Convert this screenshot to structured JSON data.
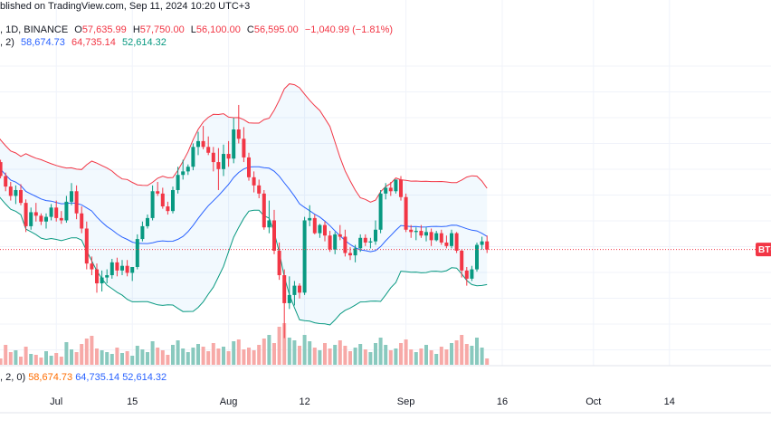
{
  "header": {
    "published": "blished on TradingView.com, Sep 11, 2024 10:20 UTC+3",
    "symbol_line": ", 1D, BINANCE",
    "o_label": "O",
    "o_value": "57,635.99",
    "h_label": "H",
    "h_value": "57,750.00",
    "l_label": "L",
    "l_value": "56,100.00",
    "c_label": "C",
    "c_value": "56,595.00",
    "change": "−1,040.99 (−1.81%)",
    "bb_prefix": ", 2)",
    "bb_basis": "58,674.73",
    "bb_upper": "64,735.14",
    "bb_lower": "52,614.32"
  },
  "volume_header": {
    "prefix": ", 2, 0)",
    "v1": "58,674.73",
    "v2": "64,735.14",
    "v3": "52,614.32"
  },
  "price_label": "BTC",
  "colors": {
    "up": "#089981",
    "down": "#f23645",
    "basis": "#2962ff",
    "upper": "#f23645",
    "lower": "#089981",
    "fill": "#2196f3",
    "vol_up": "#89c9be",
    "vol_down": "#f7a9a7",
    "grid": "#f0f3fa"
  },
  "chart_data": {
    "type": "candlestick",
    "x_tick_labels": [
      "Jul",
      "15",
      "Aug",
      "12",
      "Sep",
      "16",
      "Oct",
      "14"
    ],
    "candles": [
      [
        59900,
        60500,
        59300,
        59600
      ],
      [
        59600,
        59800,
        58200,
        58400
      ],
      [
        58400,
        58700,
        57100,
        57500
      ],
      [
        57500,
        57900,
        56300,
        56700
      ],
      [
        56700,
        57600,
        56000,
        57200
      ],
      [
        57200,
        57700,
        55900,
        56100
      ],
      [
        56100,
        56400,
        53600,
        54100
      ],
      [
        54100,
        55700,
        53800,
        55300
      ],
      [
        55300,
        56100,
        54500,
        55000
      ],
      [
        55000,
        55200,
        54200,
        54500
      ],
      [
        54500,
        55200,
        53900,
        54900
      ],
      [
        54900,
        56000,
        54600,
        55700
      ],
      [
        55700,
        56300,
        54500,
        54800
      ],
      [
        54800,
        55400,
        54300,
        54600
      ],
      [
        54600,
        56700,
        54400,
        56200
      ],
      [
        56200,
        57800,
        55900,
        57100
      ],
      [
        57100,
        57600,
        54700,
        55200
      ],
      [
        55200,
        55800,
        53500,
        53900
      ],
      [
        53900,
        54500,
        50400,
        50900
      ],
      [
        50900,
        51500,
        49900,
        50400
      ],
      [
        50400,
        50900,
        48400,
        49200
      ],
      [
        49200,
        50300,
        48500,
        49700
      ],
      [
        49700,
        50400,
        49200,
        49900
      ],
      [
        49900,
        51300,
        49600,
        51000
      ],
      [
        51000,
        51400,
        49800,
        50300
      ],
      [
        50300,
        51200,
        49900,
        50700
      ],
      [
        50700,
        51200,
        49800,
        50100
      ],
      [
        50100,
        50600,
        49400,
        50600
      ],
      [
        50600,
        53400,
        50400,
        53000
      ],
      [
        53000,
        54500,
        52800,
        54100
      ],
      [
        54100,
        55100,
        53900,
        54800
      ],
      [
        54800,
        57600,
        54600,
        57100
      ],
      [
        57100,
        57900,
        56700,
        56900
      ],
      [
        56900,
        57400,
        55600,
        55800
      ],
      [
        55800,
        56200,
        55100,
        55400
      ],
      [
        55400,
        57500,
        55200,
        57200
      ],
      [
        57200,
        59200,
        56900,
        58500
      ],
      [
        58500,
        59800,
        58100,
        58800
      ],
      [
        58800,
        59400,
        58500,
        59200
      ],
      [
        59200,
        61200,
        58900,
        60900
      ],
      [
        60900,
        62200,
        60200,
        61400
      ],
      [
        61400,
        62700,
        60700,
        60900
      ],
      [
        60900,
        61800,
        60200,
        60400
      ],
      [
        60400,
        60900,
        58800,
        59600
      ],
      [
        59600,
        60800,
        57200,
        59000
      ],
      [
        59000,
        61100,
        58400,
        60300
      ],
      [
        60300,
        61400,
        59200,
        59900
      ],
      [
        59900,
        63400,
        59500,
        62400
      ],
      [
        62400,
        64500,
        61200,
        61600
      ],
      [
        61600,
        62600,
        59600,
        60000
      ],
      [
        60000,
        60400,
        58000,
        58300
      ],
      [
        58300,
        58800,
        57000,
        57600
      ],
      [
        57600,
        58100,
        56500,
        56900
      ],
      [
        56900,
        57200,
        53800,
        54000
      ],
      [
        54000,
        56300,
        53500,
        54600
      ],
      [
        54600,
        55500,
        51700,
        52000
      ],
      [
        52000,
        52700,
        49500,
        49900
      ],
      [
        49900,
        50400,
        44500,
        47500
      ],
      [
        47500,
        49800,
        47000,
        48200
      ],
      [
        48200,
        49400,
        47300,
        49000
      ],
      [
        49000,
        49200,
        47900,
        48400
      ],
      [
        48400,
        54900,
        48200,
        54600
      ],
      [
        54600,
        55900,
        54100,
        54800
      ],
      [
        54800,
        55100,
        53400,
        53500
      ],
      [
        53500,
        54300,
        53100,
        54200
      ],
      [
        54200,
        54500,
        52800,
        53300
      ],
      [
        53300,
        53700,
        51900,
        52100
      ],
      [
        52100,
        53600,
        51700,
        53400
      ],
      [
        53400,
        54200,
        52900,
        53200
      ],
      [
        53200,
        53800,
        51500,
        51800
      ],
      [
        51800,
        52300,
        51200,
        51600
      ],
      [
        51600,
        52500,
        51000,
        52200
      ],
      [
        52200,
        53400,
        51900,
        53100
      ],
      [
        53100,
        53400,
        52400,
        52700
      ],
      [
        52700,
        53100,
        52200,
        52800
      ],
      [
        52800,
        54600,
        52500,
        53800
      ],
      [
        53800,
        57200,
        53500,
        56900
      ],
      [
        56900,
        57800,
        56400,
        57400
      ],
      [
        57400,
        57900,
        56700,
        57100
      ],
      [
        57100,
        58100,
        56900,
        58100
      ],
      [
        58100,
        58400,
        56300,
        56600
      ],
      [
        56600,
        56900,
        53600,
        53800
      ],
      [
        53800,
        54200,
        53100,
        53600
      ],
      [
        53600,
        54000,
        52900,
        53700
      ],
      [
        53700,
        54200,
        53100,
        53300
      ],
      [
        53300,
        54000,
        52800,
        53600
      ],
      [
        53600,
        53900,
        52400,
        52900
      ],
      [
        52900,
        53700,
        52800,
        53500
      ],
      [
        53500,
        53800,
        52500,
        52700
      ],
      [
        52700,
        53300,
        52200,
        52400
      ],
      [
        52400,
        53800,
        52200,
        53500
      ],
      [
        53500,
        53600,
        51800,
        52000
      ],
      [
        52000,
        52100,
        49700,
        50300
      ],
      [
        50300,
        50600,
        49000,
        49600
      ],
      [
        49600,
        50700,
        49400,
        50400
      ],
      [
        50400,
        52700,
        50200,
        52500
      ],
      [
        52500,
        53200,
        52100,
        52800
      ],
      [
        52800,
        53300,
        51800,
        52100
      ]
    ],
    "volume": [
      18,
      7,
      22,
      14,
      16,
      9,
      20,
      12,
      11,
      8,
      15,
      10,
      13,
      9,
      25,
      17,
      14,
      23,
      29,
      32,
      18,
      16,
      14,
      12,
      19,
      13,
      15,
      10,
      21,
      17,
      14,
      26,
      19,
      16,
      11,
      22,
      27,
      18,
      14,
      19,
      23,
      20,
      15,
      24,
      18,
      20,
      15,
      26,
      28,
      17,
      19,
      16,
      22,
      29,
      33,
      24,
      42,
      46,
      30,
      27,
      21,
      33,
      26,
      19,
      16,
      24,
      18,
      22,
      27,
      21,
      15,
      19,
      23,
      17,
      14,
      24,
      30,
      22,
      16,
      18,
      24,
      28,
      17,
      14,
      18,
      22,
      16,
      12,
      20,
      17,
      24,
      27,
      33,
      23,
      21,
      30,
      19,
      7
    ]
  }
}
